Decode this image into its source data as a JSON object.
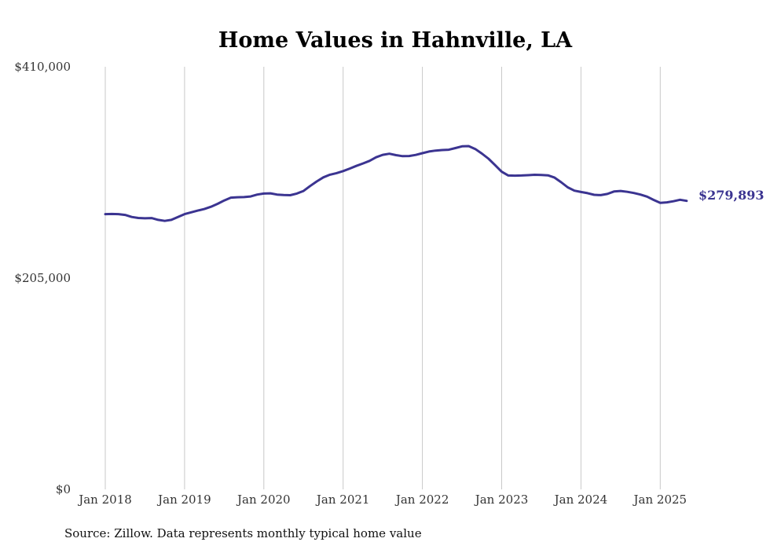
{
  "chart_data": {
    "type": "line",
    "title": "Home Values in Hahnville, LA",
    "xlabel": "",
    "ylabel": "",
    "ylim": [
      0,
      410000
    ],
    "yticks": [
      "$410,000",
      "$205,000",
      "$0"
    ],
    "ytick_values": [
      410000,
      205000,
      0
    ],
    "xticks": [
      "Jan 2018",
      "Jan 2019",
      "Jan 2020",
      "Jan 2021",
      "Jan 2022",
      "Jan 2023",
      "Jan 2024",
      "Jan 2025"
    ],
    "xtick_values": [
      "2018-01",
      "2019-01",
      "2020-01",
      "2021-01",
      "2022-01",
      "2023-01",
      "2024-01",
      "2025-01"
    ],
    "grid": "vertical",
    "line_color": "#3b3491",
    "end_label": "$279,893",
    "source": "Source: Zillow. Data represents monthly typical home value",
    "series": [
      {
        "x": [
          "2018-01",
          "2018-02",
          "2018-03",
          "2018-04",
          "2018-05",
          "2018-06",
          "2018-07",
          "2018-08",
          "2018-09",
          "2018-10",
          "2018-11",
          "2018-12",
          "2019-01",
          "2019-02",
          "2019-03",
          "2019-04",
          "2019-05",
          "2019-06",
          "2019-07",
          "2019-08",
          "2019-09",
          "2019-10",
          "2019-11",
          "2019-12",
          "2020-01",
          "2020-02",
          "2020-03",
          "2020-04",
          "2020-05",
          "2020-06",
          "2020-07",
          "2020-08",
          "2020-09",
          "2020-10",
          "2020-11",
          "2020-12",
          "2021-01",
          "2021-02",
          "2021-03",
          "2021-04",
          "2021-05",
          "2021-06",
          "2021-07",
          "2021-08",
          "2021-09",
          "2021-10",
          "2021-11",
          "2021-12",
          "2022-01",
          "2022-02",
          "2022-03",
          "2022-04",
          "2022-05",
          "2022-06",
          "2022-07",
          "2022-08",
          "2022-09",
          "2022-10",
          "2022-11",
          "2022-12",
          "2023-01",
          "2023-02",
          "2023-03",
          "2023-04",
          "2023-05",
          "2023-06",
          "2023-07",
          "2023-08",
          "2023-09",
          "2023-10",
          "2023-11",
          "2023-12",
          "2024-01",
          "2024-02",
          "2024-03",
          "2024-04",
          "2024-05",
          "2024-06",
          "2024-07",
          "2024-08",
          "2024-09",
          "2024-10",
          "2024-11",
          "2024-12",
          "2025-01",
          "2025-02",
          "2025-03",
          "2025-04",
          "2025-05"
        ],
        "values": [
          267000,
          267200,
          267000,
          266300,
          264300,
          263300,
          263000,
          263200,
          261500,
          260500,
          261500,
          264300,
          267000,
          268800,
          270500,
          272000,
          274200,
          277000,
          280300,
          283000,
          283400,
          283600,
          284200,
          286000,
          287000,
          287200,
          286000,
          285600,
          285400,
          287000,
          289500,
          294300,
          298700,
          302700,
          305300,
          306800,
          308800,
          311200,
          313800,
          316200,
          318700,
          322200,
          324600,
          325600,
          324300,
          323300,
          323400,
          324500,
          326200,
          327800,
          328700,
          329200,
          329500,
          331100,
          332800,
          333000,
          330200,
          325800,
          320800,
          314600,
          308200,
          304500,
          304400,
          304500,
          304800,
          305200,
          305000,
          304700,
          302500,
          298000,
          293000,
          289800,
          288500,
          287400,
          285800,
          285500,
          286600,
          289000,
          289500,
          288700,
          287500,
          286000,
          284000,
          280800,
          278000,
          278500,
          279500,
          281000,
          279893
        ]
      }
    ]
  }
}
